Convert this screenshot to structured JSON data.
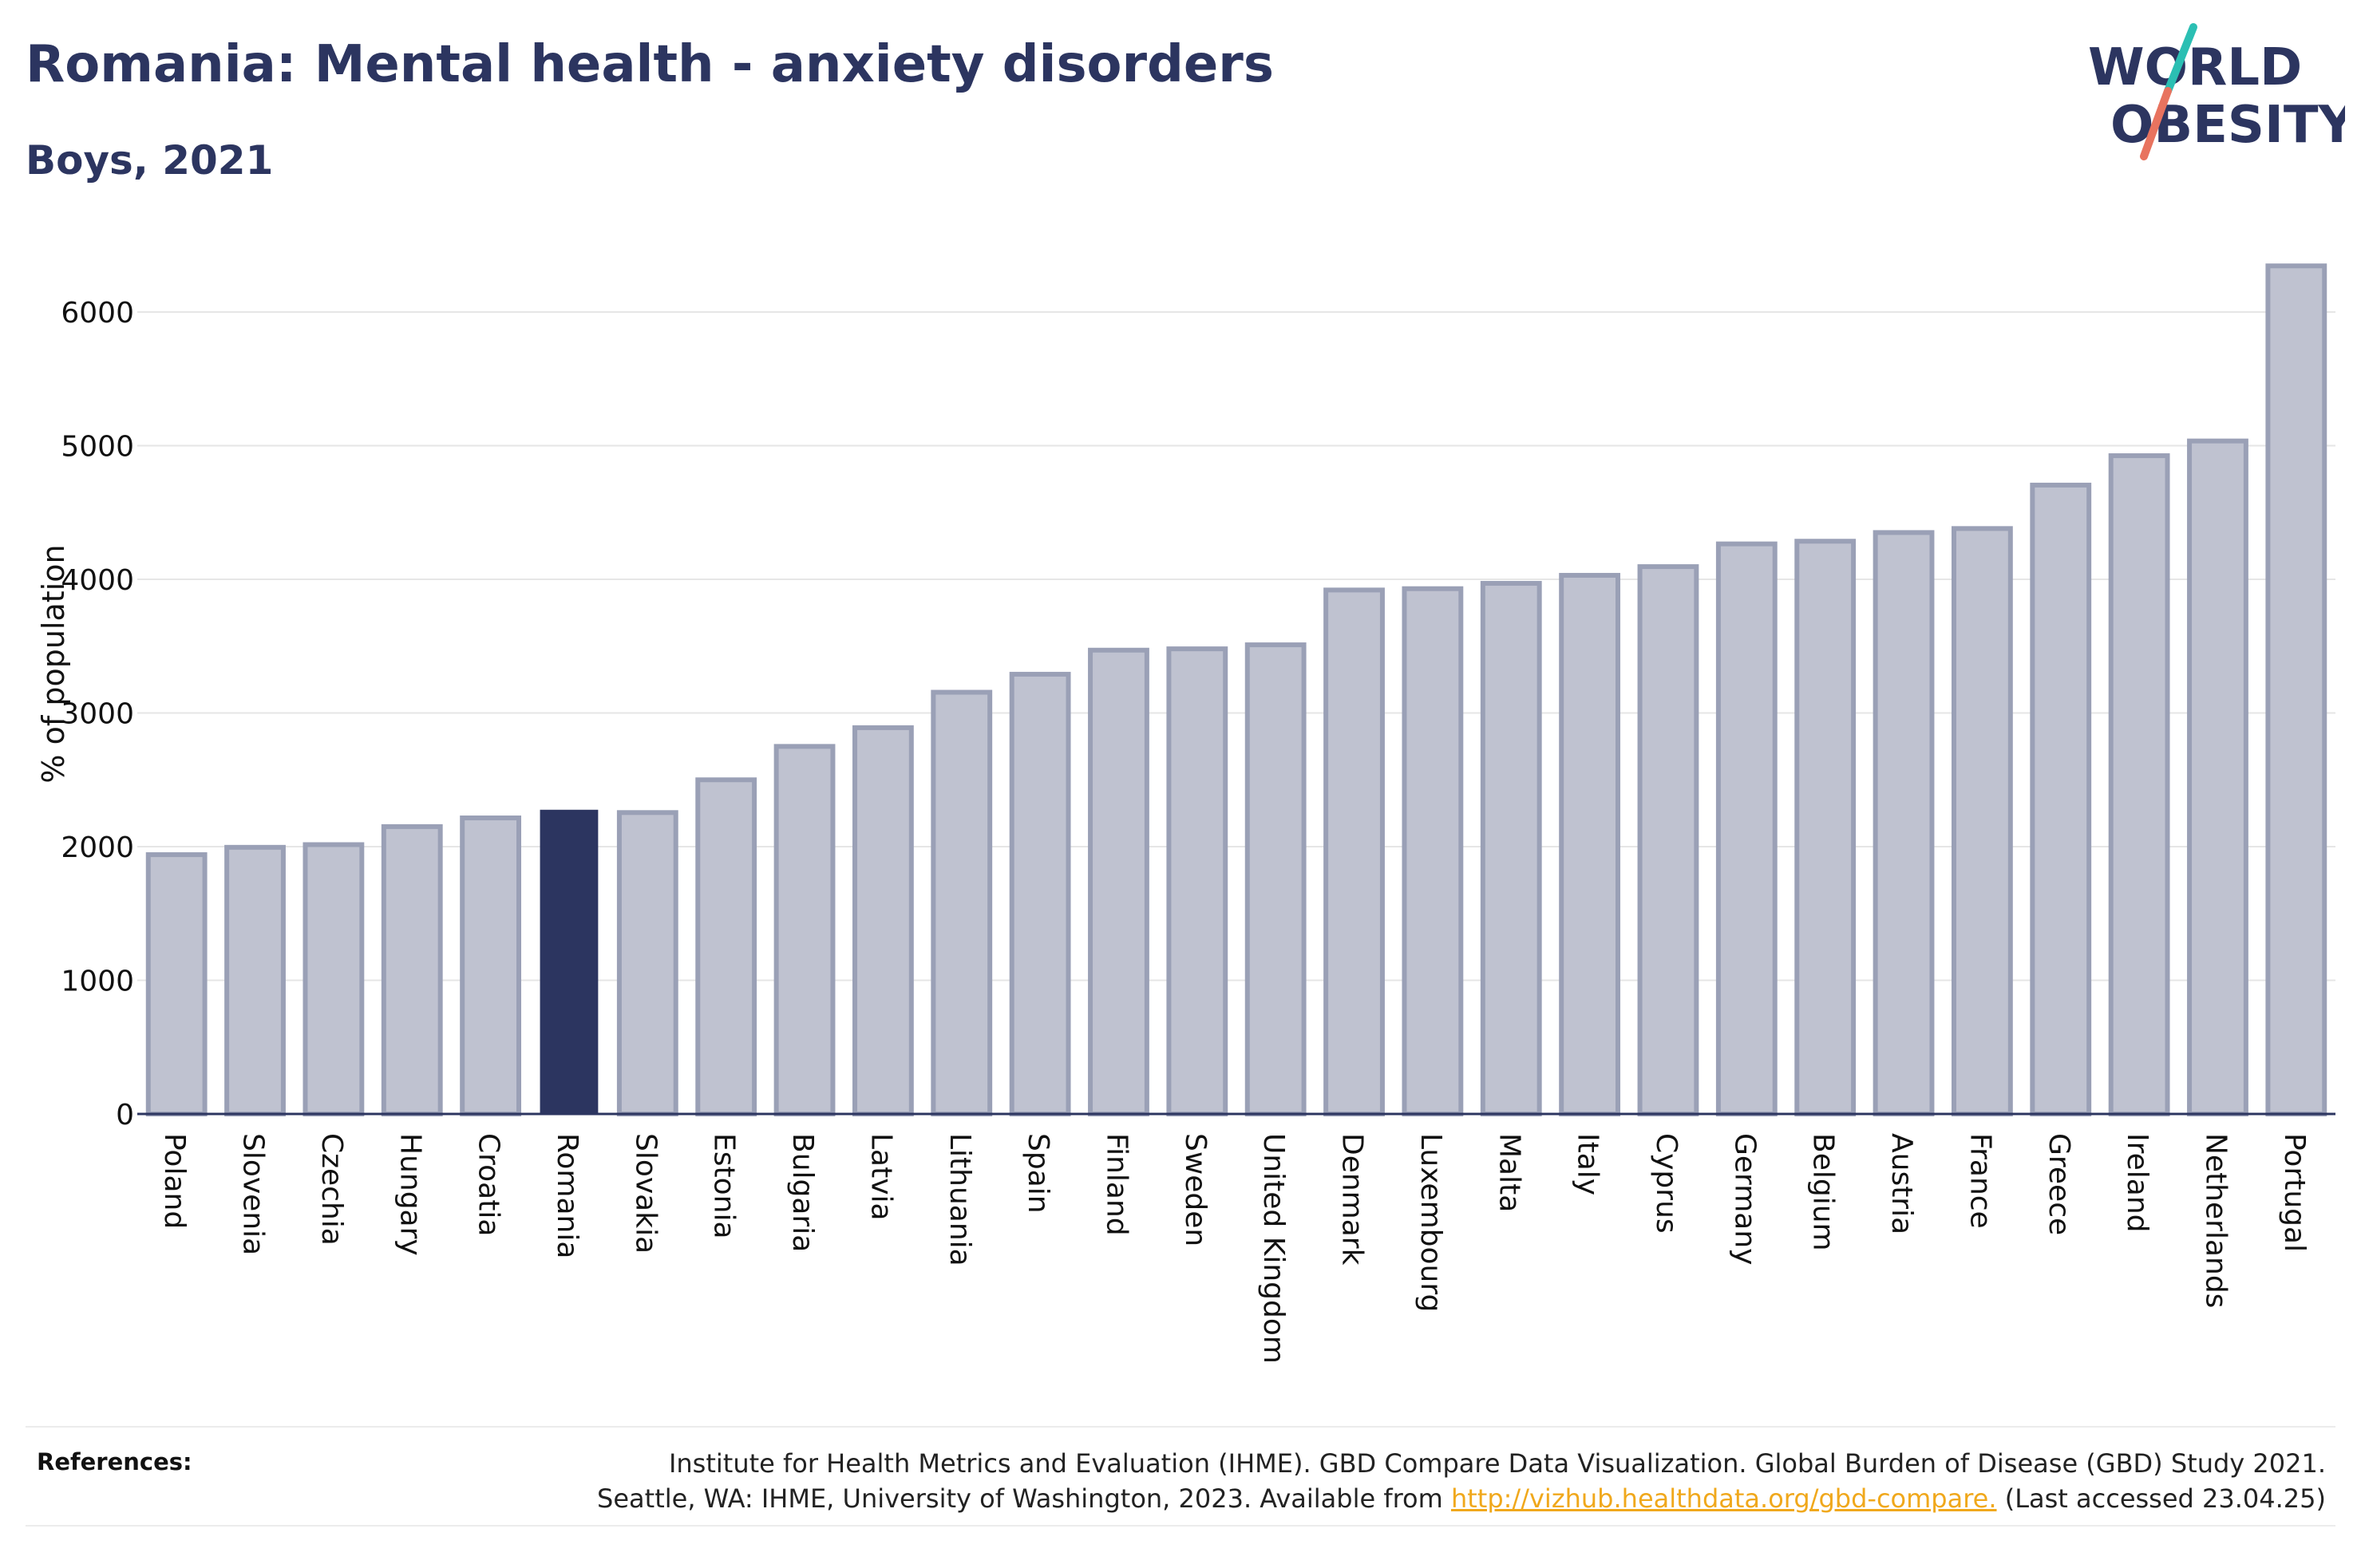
{
  "header": {
    "title": "Romania: Mental health - anxiety disorders",
    "subtitle": "Boys, 2021"
  },
  "logo": {
    "line1": "WORLD",
    "line2": "OBESITY",
    "colors": {
      "text": "#2c3560",
      "slash_teal": "#2bbfb3",
      "slash_coral": "#e8735f"
    }
  },
  "chart_data": {
    "type": "bar",
    "ylabel": "% of population",
    "xlabel": "",
    "ylim": [
      0,
      6500
    ],
    "yticks": [
      0,
      1000,
      2000,
      3000,
      4000,
      5000,
      6000
    ],
    "grid": true,
    "highlight": "Romania",
    "colors": {
      "default": "#bfc2d0",
      "default_border": "#9aa0b6",
      "highlight": "#2c3560"
    },
    "categories": [
      "Poland",
      "Slovenia",
      "Czechia",
      "Hungary",
      "Croatia",
      "Romania",
      "Slovakia",
      "Estonia",
      "Bulgaria",
      "Latvia",
      "Lithuania",
      "Spain",
      "Finland",
      "Sweden",
      "United Kingdom",
      "Denmark",
      "Luxembourg",
      "Malta",
      "Italy",
      "Cyprus",
      "Germany",
      "Belgium",
      "Austria",
      "France",
      "Greece",
      "Ireland",
      "Netherlands",
      "Portugal"
    ],
    "values": [
      1940,
      1995,
      2015,
      2150,
      2215,
      2270,
      2255,
      2500,
      2750,
      2890,
      3155,
      3290,
      3470,
      3480,
      3510,
      3920,
      3930,
      3970,
      4030,
      4095,
      4265,
      4285,
      4350,
      4380,
      4705,
      4925,
      5035,
      6345
    ]
  },
  "references": {
    "label": "References:",
    "line1": "Institute for Health Metrics and Evaluation (IHME). GBD Compare Data Visualization. Global Burden of Disease (GBD) Study 2021.",
    "line2_prefix": "Seattle, WA: IHME, University of Washington, 2023. Available from ",
    "link": "http://vizhub.healthdata.org/gbd-compare.",
    "line2_suffix": " (Last accessed 23.04.25)"
  }
}
